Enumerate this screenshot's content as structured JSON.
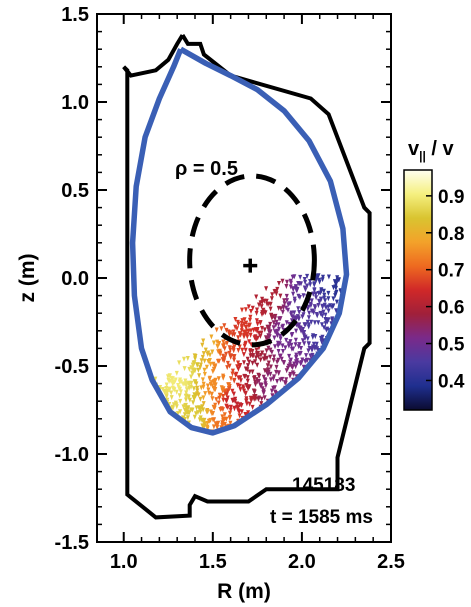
{
  "chart_data": {
    "type": "scatter",
    "title": "",
    "xlabel": "R (m)",
    "ylabel": "z (m)",
    "xlim": [
      0.85,
      2.5
    ],
    "ylim": [
      -1.5,
      1.5
    ],
    "x_ticks": [
      "1.0",
      "1.5",
      "2.0",
      "2.5"
    ],
    "y_ticks": [
      "1.5",
      "1.0",
      "0.5",
      "0.0",
      "-0.5",
      "-1.0",
      "-1.5"
    ],
    "x_tick_values": [
      1.0,
      1.5,
      2.0,
      2.5
    ],
    "y_tick_values": [
      1.5,
      1.0,
      0.5,
      0.0,
      -0.5,
      -1.0,
      -1.5
    ],
    "annotations": {
      "rho_label": "ρ = 0.5",
      "shot": "145183",
      "time": "t = 1585 ms"
    },
    "colorbar": {
      "label_main": "v",
      "label_sub": "||",
      "label_rest": " / v",
      "ticks": [
        "0.9",
        "0.8",
        "0.7",
        "0.6",
        "0.5",
        "0.4"
      ],
      "tick_values": [
        0.9,
        0.8,
        0.7,
        0.6,
        0.5,
        0.4
      ],
      "range": [
        0.32,
        0.97
      ],
      "colors": [
        "#0b0b30",
        "#1f2f8f",
        "#4a3aa0",
        "#7a2a8a",
        "#a0203a",
        "#d02828",
        "#ee6a20",
        "#f3a22a",
        "#d9c430",
        "#f5f080",
        "#fffff0"
      ]
    },
    "magnetic_axis": {
      "R": 1.71,
      "z": 0.07
    },
    "rho_contour": {
      "R_center": 1.72,
      "z_center": 0.1,
      "half_width": 0.35,
      "half_height": 0.48
    },
    "separatrix": [
      [
        1.32,
        1.3
      ],
      [
        1.28,
        1.2
      ],
      [
        1.2,
        1.02
      ],
      [
        1.12,
        0.8
      ],
      [
        1.07,
        0.52
      ],
      [
        1.05,
        0.2
      ],
      [
        1.06,
        -0.1
      ],
      [
        1.1,
        -0.4
      ],
      [
        1.16,
        -0.58
      ],
      [
        1.26,
        -0.76
      ],
      [
        1.38,
        -0.85
      ],
      [
        1.5,
        -0.88
      ],
      [
        1.62,
        -0.84
      ],
      [
        1.8,
        -0.72
      ],
      [
        1.98,
        -0.57
      ],
      [
        2.12,
        -0.4
      ],
      [
        2.21,
        -0.2
      ],
      [
        2.25,
        0.02
      ],
      [
        2.23,
        0.28
      ],
      [
        2.16,
        0.55
      ],
      [
        2.04,
        0.78
      ],
      [
        1.9,
        0.95
      ],
      [
        1.75,
        1.07
      ],
      [
        1.6,
        1.15
      ],
      [
        1.46,
        1.22
      ],
      [
        1.32,
        1.3
      ]
    ],
    "vessel_wall": [
      [
        1.33,
        1.38
      ],
      [
        1.36,
        1.33
      ],
      [
        1.43,
        1.33
      ],
      [
        1.45,
        1.27
      ],
      [
        1.6,
        1.15
      ],
      [
        2.05,
        1.02
      ],
      [
        2.15,
        0.93
      ],
      [
        2.35,
        0.4
      ],
      [
        2.38,
        0.37
      ],
      [
        2.38,
        -0.37
      ],
      [
        2.35,
        -0.4
      ],
      [
        2.2,
        -1.02
      ],
      [
        2.2,
        -1.2
      ],
      [
        1.8,
        -1.2
      ],
      [
        1.7,
        -1.27
      ],
      [
        1.47,
        -1.27
      ],
      [
        1.4,
        -1.24
      ],
      [
        1.37,
        -1.29
      ],
      [
        1.37,
        -1.35
      ],
      [
        1.18,
        -1.36
      ],
      [
        1.02,
        -1.23
      ],
      [
        1.02,
        1.18
      ],
      [
        1.0,
        1.2
      ],
      [
        1.04,
        1.15
      ],
      [
        1.18,
        1.18
      ],
      [
        1.25,
        1.24
      ],
      [
        1.3,
        1.33
      ],
      [
        1.33,
        1.38
      ]
    ],
    "fast_ion_samples": [
      {
        "R": 1.3,
        "z": -0.6,
        "v": 0.9
      },
      {
        "R": 1.33,
        "z": -0.5,
        "v": 0.88
      },
      {
        "R": 1.28,
        "z": -0.7,
        "v": 0.87
      },
      {
        "R": 1.4,
        "z": -0.78,
        "v": 0.85
      },
      {
        "R": 1.45,
        "z": -0.4,
        "v": 0.82
      },
      {
        "R": 1.38,
        "z": -0.3,
        "v": 0.8
      },
      {
        "R": 1.52,
        "z": -0.6,
        "v": 0.75
      },
      {
        "R": 1.55,
        "z": -0.8,
        "v": 0.72
      },
      {
        "R": 1.5,
        "z": -0.2,
        "v": 0.7
      },
      {
        "R": 1.6,
        "z": -0.45,
        "v": 0.68
      },
      {
        "R": 1.65,
        "z": -0.25,
        "v": 0.66
      },
      {
        "R": 1.62,
        "z": -0.7,
        "v": 0.62
      },
      {
        "R": 1.72,
        "z": -0.5,
        "v": 0.58
      },
      {
        "R": 1.8,
        "z": -0.1,
        "v": 0.6
      },
      {
        "R": 1.82,
        "z": -0.6,
        "v": 0.53
      },
      {
        "R": 1.92,
        "z": -0.35,
        "v": 0.5
      },
      {
        "R": 2.02,
        "z": -0.15,
        "v": 0.47
      },
      {
        "R": 2.1,
        "z": -0.3,
        "v": 0.44
      },
      {
        "R": 2.15,
        "z": 0.05,
        "v": 0.42
      },
      {
        "R": 2.2,
        "z": -0.05,
        "v": 0.4
      }
    ]
  }
}
